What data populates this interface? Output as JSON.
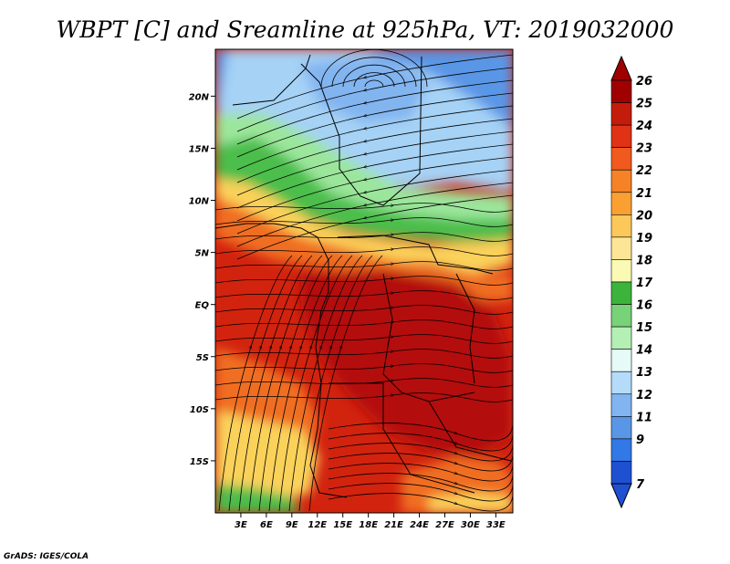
{
  "title": "WBPT [C] and Sreamline at 925hPa, VT: 2019032000",
  "credit": "GrADS: IGES/COLA",
  "map": {
    "lat_ticks": [
      "20N",
      "15N",
      "10N",
      "5N",
      "EQ",
      "5S",
      "10S",
      "15S"
    ],
    "lat_values": [
      20,
      15,
      10,
      5,
      0,
      -5,
      -10,
      -15
    ],
    "lon_ticks": [
      "3E",
      "6E",
      "9E",
      "12E",
      "15E",
      "18E",
      "21E",
      "24E",
      "27E",
      "30E",
      "33E"
    ],
    "lon_values": [
      3,
      6,
      9,
      12,
      15,
      18,
      21,
      24,
      27,
      30,
      33
    ],
    "lat_range": [
      -20,
      24.5
    ],
    "lon_range": [
      0,
      35
    ]
  },
  "colorbar": {
    "labels": [
      "26",
      "25",
      "24",
      "23",
      "22",
      "21",
      "20",
      "19",
      "18",
      "17",
      "16",
      "15",
      "14",
      "13",
      "12",
      "11",
      "9",
      "7"
    ],
    "colors": [
      "#a00000",
      "#c41c0a",
      "#e03214",
      "#f05a1e",
      "#f68228",
      "#faa032",
      "#fcc85a",
      "#fce696",
      "#fafab4",
      "#3cb43c",
      "#78d278",
      "#b4f0b4",
      "#e6faf8",
      "#b4dcfa",
      "#82b4f0",
      "#5a96e6",
      "#3278e6",
      "#1e50d2"
    ]
  },
  "colors": {
    "red_dark": "#b40f0a",
    "red": "#d2230f",
    "orange": "#f06e23",
    "yellow": "#fad25a",
    "green": "#4bbe4b",
    "light_green": "#9be69b",
    "light_blue": "#a5d2f5",
    "blue": "#5a96e6"
  }
}
